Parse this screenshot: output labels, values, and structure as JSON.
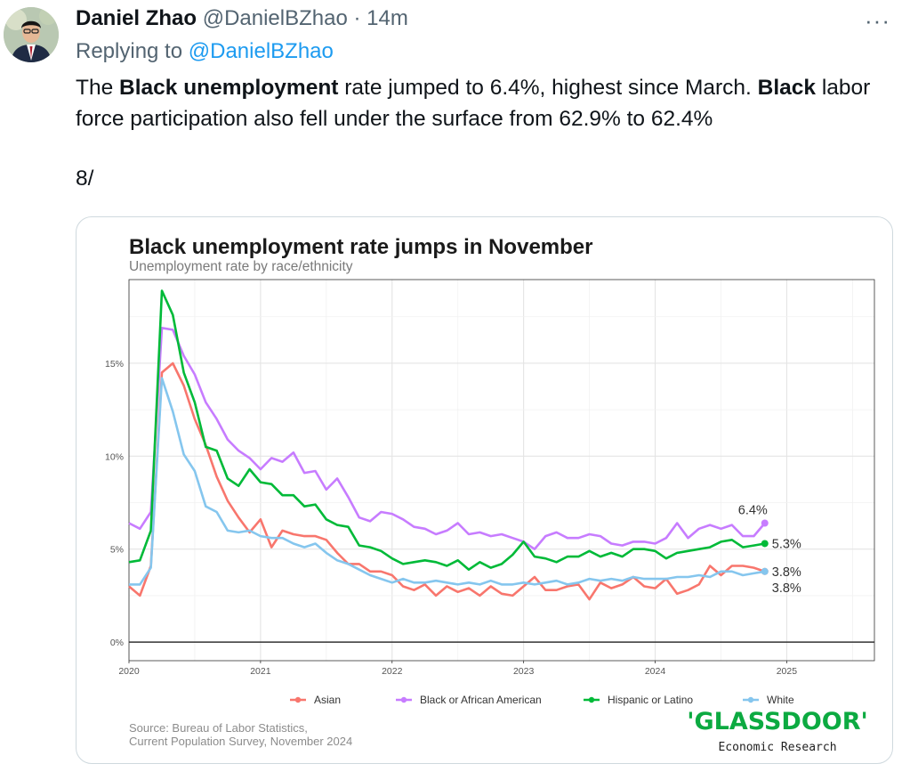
{
  "tweet": {
    "author_name": "Daniel Zhao",
    "author_handle": "@DanielBZhao",
    "separator": "·",
    "time": "14m",
    "more_label": "···",
    "replying_to_prefix": "Replying to",
    "replying_to_handle": "@DanielBZhao",
    "text_parts": [
      "The ",
      "Black unemployment",
      " rate jumped to 6.4%, highest since March. ",
      "Black",
      " labor force participation also fell under the surface from 62.9% to 62.4%"
    ],
    "thread_counter": "8/"
  },
  "chart_meta": {
    "source_line1": "Source: Bureau of Labor Statistics,",
    "source_line2": "Current Population Survey, November 2024",
    "logo_text": "'GLASSDOOR'",
    "logo_subtitle": "Economic Research",
    "logo_color": "#0caa41"
  },
  "chart_data": {
    "type": "line",
    "title": "Black unemployment rate jumps in November",
    "subtitle": "Unemployment rate by race/ethnicity",
    "x_start": "2020-01",
    "x_ticks": [
      "2020",
      "2021",
      "2022",
      "2023",
      "2024",
      "2025"
    ],
    "y_ticks": [
      "0%",
      "5%",
      "10%",
      "15%"
    ],
    "ylim": [
      -1,
      19.5
    ],
    "xlim": [
      "2020-01",
      "2025-09"
    ],
    "grid": true,
    "legend_position": "bottom",
    "series": [
      {
        "name": "Asian",
        "color": "#f8766d",
        "end_label": "3.8%",
        "values": [
          3.0,
          2.5,
          4.1,
          14.5,
          15.0,
          13.8,
          12.0,
          10.6,
          8.9,
          7.6,
          6.7,
          5.9,
          6.6,
          5.1,
          6.0,
          5.8,
          5.7,
          5.7,
          5.5,
          4.8,
          4.2,
          4.2,
          3.8,
          3.8,
          3.6,
          3.0,
          2.8,
          3.1,
          2.5,
          3.0,
          2.7,
          2.9,
          2.5,
          3.0,
          2.6,
          2.5,
          3.0,
          3.5,
          2.8,
          2.8,
          3.0,
          3.1,
          2.3,
          3.2,
          2.9,
          3.1,
          3.5,
          3.0,
          2.9,
          3.4,
          2.6,
          2.8,
          3.1,
          4.1,
          3.6,
          4.1,
          4.1,
          4.0,
          3.8
        ]
      },
      {
        "name": "Black or African American",
        "color": "#c77cff",
        "end_label": "6.4%",
        "values": [
          6.4,
          6.1,
          7.0,
          16.9,
          16.8,
          15.4,
          14.4,
          12.9,
          12.0,
          10.9,
          10.3,
          9.9,
          9.3,
          9.9,
          9.7,
          10.2,
          9.1,
          9.2,
          8.2,
          8.8,
          7.8,
          6.7,
          6.5,
          7.0,
          6.9,
          6.6,
          6.2,
          6.1,
          5.8,
          6.0,
          6.4,
          5.8,
          5.9,
          5.7,
          5.8,
          5.6,
          5.4,
          5.0,
          5.7,
          5.9,
          5.6,
          5.6,
          5.8,
          5.7,
          5.3,
          5.2,
          5.4,
          5.4,
          5.3,
          5.6,
          6.4,
          5.6,
          6.1,
          6.3,
          6.1,
          6.3,
          5.7,
          5.7,
          6.4
        ]
      },
      {
        "name": "Hispanic or Latino",
        "color": "#00ba38",
        "end_label": "5.3%",
        "values": [
          4.3,
          4.4,
          6.0,
          18.9,
          17.6,
          14.5,
          12.9,
          10.5,
          10.3,
          8.8,
          8.4,
          9.3,
          8.6,
          8.5,
          7.9,
          7.9,
          7.3,
          7.4,
          6.6,
          6.3,
          6.2,
          5.2,
          5.1,
          4.9,
          4.5,
          4.2,
          4.3,
          4.4,
          4.3,
          4.1,
          4.4,
          3.9,
          4.3,
          4.0,
          4.2,
          4.7,
          5.4,
          4.6,
          4.5,
          4.3,
          4.6,
          4.6,
          4.9,
          4.6,
          4.8,
          4.6,
          5.0,
          5.0,
          4.9,
          4.5,
          4.8,
          4.9,
          5.0,
          5.1,
          5.4,
          5.5,
          5.1,
          5.2,
          5.3
        ]
      },
      {
        "name": "White",
        "color": "#85c6ee",
        "end_label": "3.8%",
        "values": [
          3.1,
          3.1,
          4.0,
          14.2,
          12.4,
          10.1,
          9.2,
          7.3,
          7.0,
          6.0,
          5.9,
          6.0,
          5.7,
          5.6,
          5.6,
          5.3,
          5.1,
          5.3,
          4.8,
          4.4,
          4.2,
          3.9,
          3.6,
          3.4,
          3.2,
          3.4,
          3.2,
          3.2,
          3.3,
          3.2,
          3.1,
          3.2,
          3.1,
          3.3,
          3.1,
          3.1,
          3.2,
          3.1,
          3.2,
          3.3,
          3.1,
          3.2,
          3.4,
          3.3,
          3.4,
          3.3,
          3.5,
          3.4,
          3.4,
          3.4,
          3.5,
          3.5,
          3.6,
          3.5,
          3.8,
          3.8,
          3.6,
          3.7,
          3.8
        ]
      }
    ]
  }
}
